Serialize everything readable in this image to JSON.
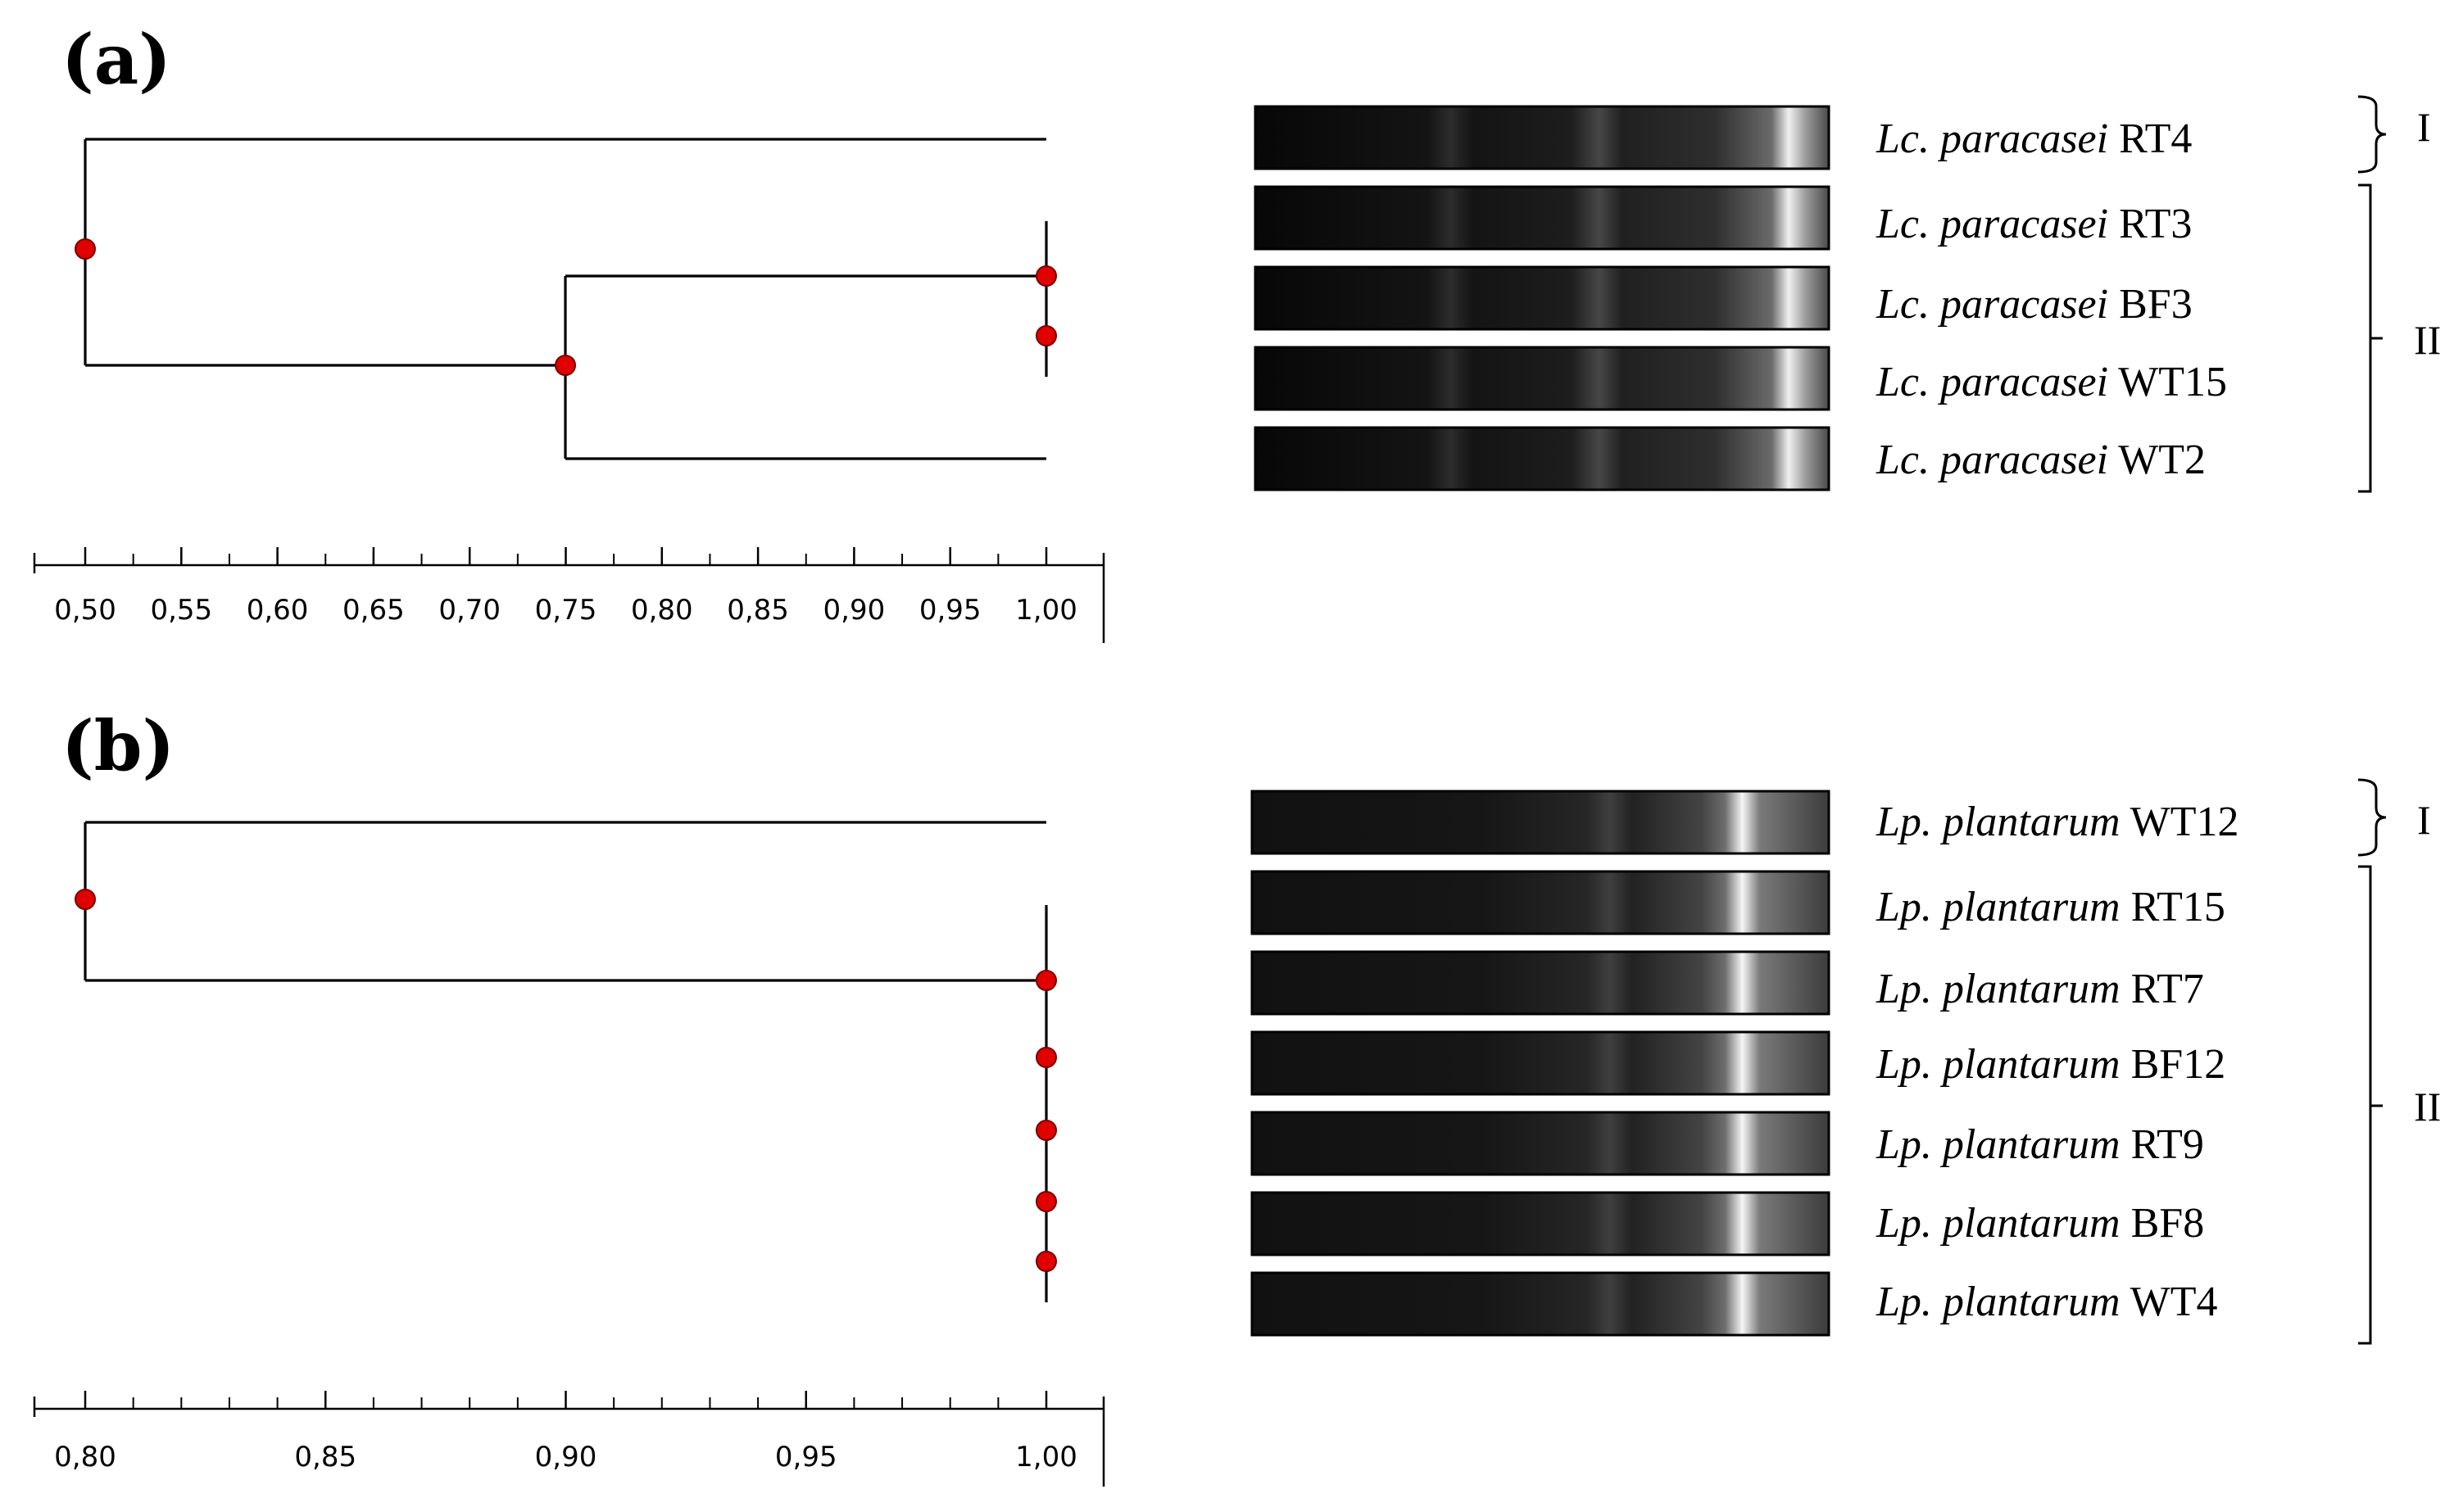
{
  "panels": [
    {
      "label": "(a)",
      "axis": {
        "min": 0.5,
        "max": 1.0,
        "ticks": [
          "0,50",
          "0,55",
          "0,60",
          "0,65",
          "0,70",
          "0,75",
          "0,80",
          "0,85",
          "0,90",
          "0,95",
          "1,00"
        ]
      },
      "dendrogram": {
        "root_similarity": 0.5,
        "inner_node_similarity": 0.75,
        "identical_group_similarity": 1.0
      },
      "strains": [
        {
          "genus": "Lc. paracasei",
          "strain": "RT4"
        },
        {
          "genus": "Lc. paracasei",
          "strain": "RT3"
        },
        {
          "genus": "Lc. paracasei",
          "strain": "BF3"
        },
        {
          "genus": "Lc. paracasei",
          "strain": "WT15"
        },
        {
          "genus": "Lc. paracasei",
          "strain": "WT2"
        }
      ],
      "clusters": [
        {
          "label": "I",
          "members": [
            0
          ]
        },
        {
          "label": "II",
          "members": [
            1,
            2,
            3,
            4
          ]
        }
      ]
    },
    {
      "label": "(b)",
      "axis": {
        "min": 0.8,
        "max": 1.0,
        "ticks": [
          "0,80",
          "0,85",
          "0,90",
          "0,95",
          "1,00"
        ]
      },
      "dendrogram": {
        "root_similarity": 0.8,
        "identical_group_similarity": 1.0
      },
      "strains": [
        {
          "genus": "Lp. plantarum",
          "strain": "WT12"
        },
        {
          "genus": "Lp. plantarum",
          "strain": "RT15"
        },
        {
          "genus": "Lp. plantarum",
          "strain": "RT7"
        },
        {
          "genus": "Lp. plantarum",
          "strain": "BF12"
        },
        {
          "genus": "Lp. plantarum",
          "strain": "RT9"
        },
        {
          "genus": "Lp. plantarum",
          "strain": "BF8"
        },
        {
          "genus": "Lp. plantarum",
          "strain": "WT4"
        }
      ],
      "clusters": [
        {
          "label": "I",
          "members": [
            0
          ]
        },
        {
          "label": "II",
          "members": [
            1,
            2,
            3,
            4,
            5,
            6
          ]
        }
      ]
    }
  ],
  "colors": {
    "line": "#000000",
    "node": "#e00000",
    "gel_dark": "#111111",
    "band_bright": "#f2f2f2"
  }
}
